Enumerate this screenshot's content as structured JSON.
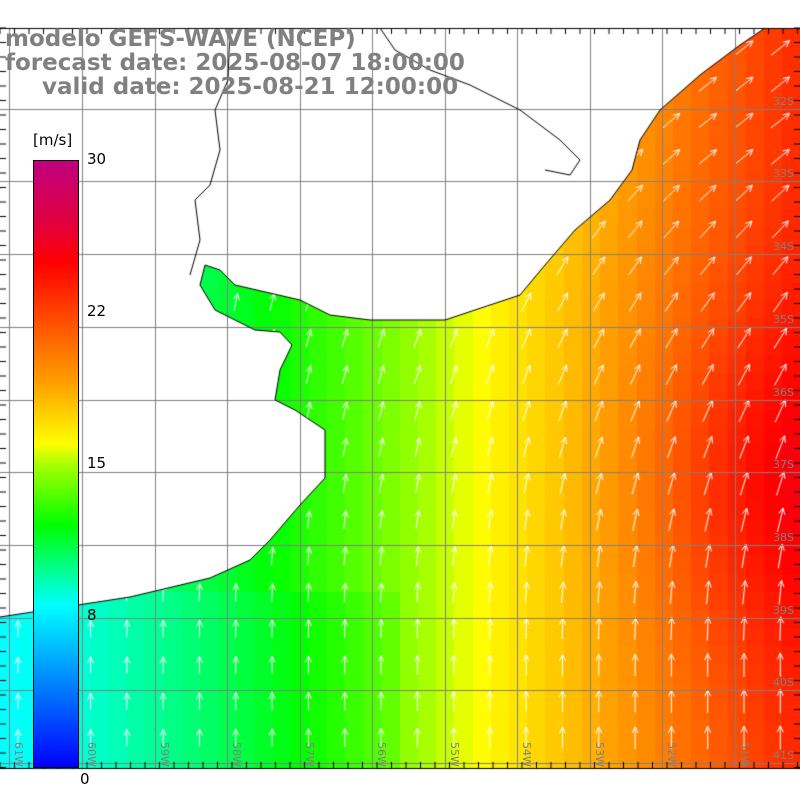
{
  "title": {
    "model": "modelo GEFS-WAVE (NCEP)",
    "forecast": "forecast date: 2025-08-07 18:00:00",
    "valid": "valid date: 2025-08-21 12:00:00"
  },
  "colorbar": {
    "unit": "[m/s]",
    "ticks": [
      "30",
      "22",
      "15",
      "8",
      "0"
    ],
    "range": [
      0,
      30
    ]
  },
  "axes": {
    "lon_labels": [
      "61W",
      "60W",
      "59W",
      "58W",
      "57W",
      "56W",
      "55W",
      "54W",
      "53W",
      "52W",
      "51W"
    ],
    "lat_labels": [
      "32S",
      "33S",
      "34S",
      "35S",
      "36S",
      "37S",
      "38S",
      "39S",
      "40S",
      "41S"
    ]
  },
  "colors": {
    "title": "#808080",
    "grid": "#808080",
    "coast": "#000000",
    "arrow": "#ffffff"
  }
}
